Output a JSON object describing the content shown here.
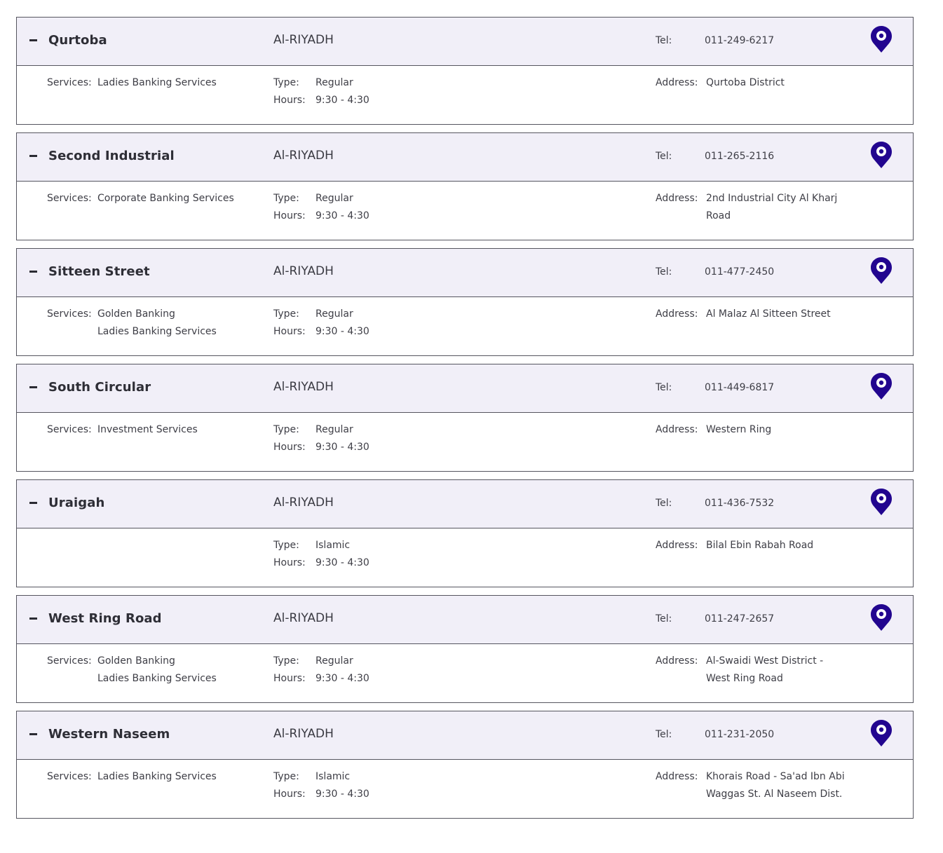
{
  "labels": {
    "tel": "Tel:",
    "services": "Services:",
    "type": "Type:",
    "hours": "Hours:",
    "address": "Address:"
  },
  "colors": {
    "pin": "#22058f",
    "header_bg": "#f1eff8",
    "border": "#55555f"
  },
  "icons": {
    "toggle": "collapse-minus-icon",
    "pin": "map-pin-icon"
  },
  "branches": [
    {
      "name": "Qurtoba",
      "city": "Al-RIYADH",
      "tel": "011-249-6217",
      "services": [
        "Ladies Banking Services"
      ],
      "type": "Regular",
      "hours": "9:30 - 4:30",
      "address": "Qurtoba District"
    },
    {
      "name": "Second Industrial",
      "city": "Al-RIYADH",
      "tel": "011-265-2116",
      "services": [
        "Corporate Banking Services"
      ],
      "type": "Regular",
      "hours": "9:30 - 4:30",
      "address": "2nd Industrial City Al Kharj Road"
    },
    {
      "name": "Sitteen Street",
      "city": "Al-RIYADH",
      "tel": "011-477-2450",
      "services": [
        "Golden Banking",
        "Ladies Banking Services"
      ],
      "type": "Regular",
      "hours": "9:30 - 4:30",
      "address": "Al Malaz Al Sitteen Street"
    },
    {
      "name": "South Circular",
      "city": "Al-RIYADH",
      "tel": "011-449-6817",
      "services": [
        "Investment Services"
      ],
      "type": "Regular",
      "hours": "9:30 - 4:30",
      "address": "Western Ring"
    },
    {
      "name": "Uraigah",
      "city": "Al-RIYADH",
      "tel": "011-436-7532",
      "services": [],
      "type": "Islamic",
      "hours": "9:30 - 4:30",
      "address": "Bilal Ebin Rabah Road"
    },
    {
      "name": "West Ring Road",
      "city": "Al-RIYADH",
      "tel": "011-247-2657",
      "services": [
        "Golden Banking",
        "Ladies Banking Services"
      ],
      "type": "Regular",
      "hours": "9:30 - 4:30",
      "address": "Al-Swaidi West District - West Ring Road"
    },
    {
      "name": "Western Naseem",
      "city": "Al-RIYADH",
      "tel": "011-231-2050",
      "services": [
        "Ladies Banking Services"
      ],
      "type": "Islamic",
      "hours": "9:30 - 4:30",
      "address": "Khorais Road - Sa'ad Ibn Abi Waggas St. Al Naseem Dist."
    }
  ]
}
